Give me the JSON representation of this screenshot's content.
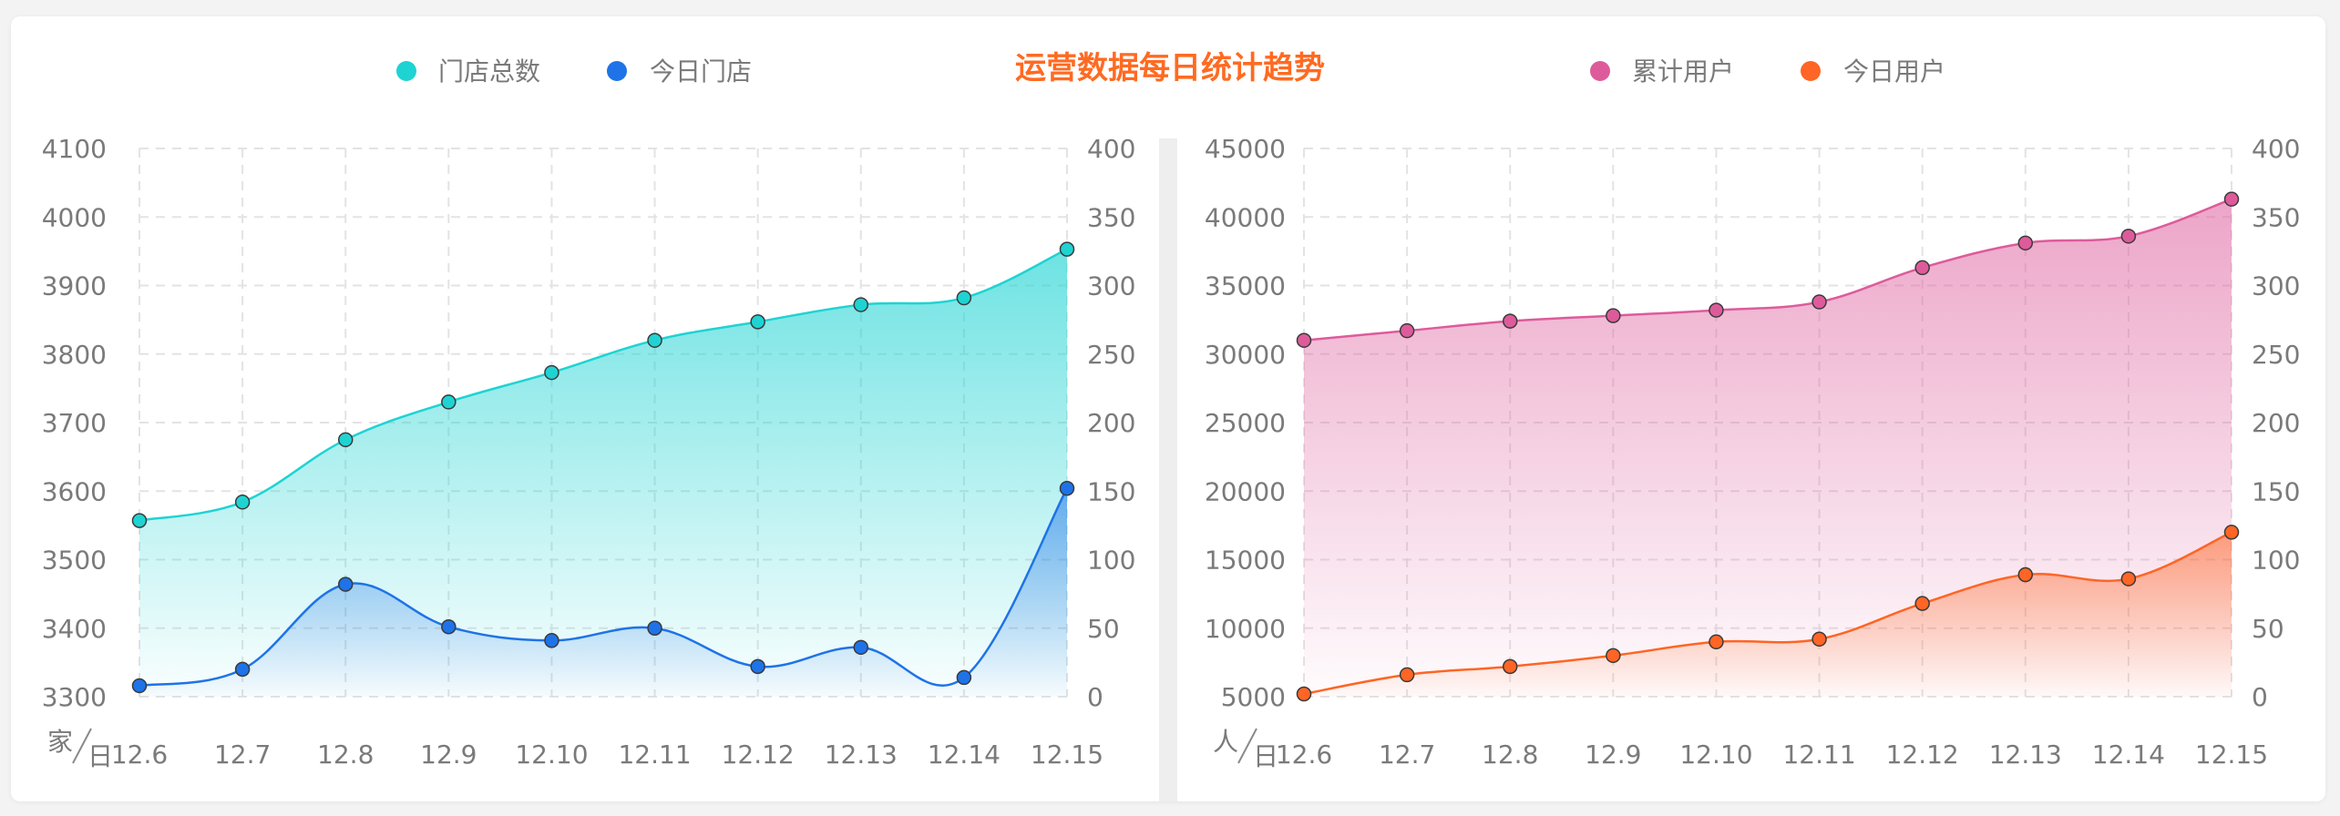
{
  "title": "运营数据每日统计趋势",
  "colors": {
    "title": "#ff6a21",
    "stores_total": "#1fd3d3",
    "stores_today": "#1e73e8",
    "users_total": "#dd5b9b",
    "users_today": "#ff6524"
  },
  "legend": {
    "stores_total": "门店总数",
    "stores_today": "今日门店",
    "users_total": "累计用户",
    "users_today": "今日用户"
  },
  "chart_data": [
    {
      "type": "area",
      "categories": [
        "12.6",
        "12.7",
        "12.8",
        "12.9",
        "12.10",
        "12.11",
        "12.12",
        "12.13",
        "12.14",
        "12.15"
      ],
      "unit_label": "家/日",
      "left_axis": {
        "ylim": [
          3300,
          4100
        ],
        "ticks": [
          3300,
          3400,
          3500,
          3600,
          3700,
          3800,
          3900,
          4000,
          4100
        ]
      },
      "right_axis": {
        "ylim": [
          0,
          400
        ],
        "ticks": [
          0,
          50,
          100,
          150,
          200,
          250,
          300,
          350,
          400
        ]
      },
      "grid": true,
      "legend_position": "top",
      "series": [
        {
          "name": "门店总数",
          "axis": "left",
          "color": "#1fd3d3",
          "values": [
            3557,
            3584,
            3675,
            3730,
            3773,
            3820,
            3847,
            3872,
            3882,
            3953
          ]
        },
        {
          "name": "今日门店",
          "axis": "right",
          "color": "#1e73e8",
          "values": [
            8,
            20,
            82,
            51,
            41,
            50,
            22,
            36,
            14,
            152
          ]
        }
      ]
    },
    {
      "type": "area",
      "categories": [
        "12.6",
        "12.7",
        "12.8",
        "12.9",
        "12.10",
        "12.11",
        "12.12",
        "12.13",
        "12.14",
        "12.15"
      ],
      "unit_label": "人/日",
      "left_axis": {
        "ylim": [
          5000,
          45000
        ],
        "ticks": [
          5000,
          10000,
          15000,
          20000,
          25000,
          30000,
          35000,
          40000,
          45000
        ]
      },
      "right_axis": {
        "ylim": [
          0,
          400
        ],
        "ticks": [
          0,
          50,
          100,
          150,
          200,
          250,
          300,
          350,
          400
        ]
      },
      "grid": true,
      "legend_position": "top",
      "series": [
        {
          "name": "累计用户",
          "axis": "left",
          "color": "#dd5b9b",
          "values": [
            31000,
            31700,
            32400,
            32800,
            33200,
            33800,
            36300,
            38100,
            38600,
            41300
          ]
        },
        {
          "name": "今日用户",
          "axis": "right",
          "color": "#ff6524",
          "values": [
            2,
            16,
            22,
            30,
            40,
            42,
            68,
            89,
            86,
            120
          ]
        }
      ]
    }
  ]
}
